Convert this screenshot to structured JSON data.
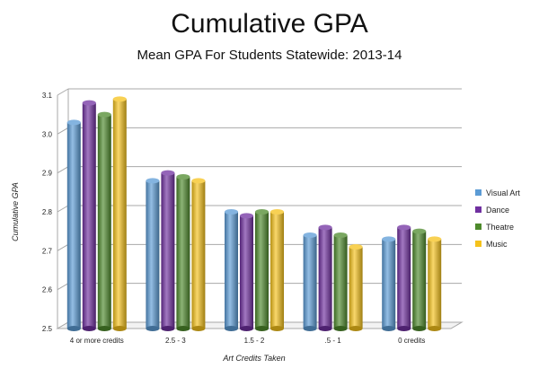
{
  "chart_data": {
    "type": "bar",
    "title": "Cumulative GPA",
    "subtitle": "Mean GPA For Students Statewide: 2013-14",
    "xlabel": "Art Credits Taken",
    "ylabel": "Cumulative GPA",
    "ylim": [
      2.5,
      3.1
    ],
    "yticks": [
      "2.5",
      "2.6",
      "2.7",
      "2.8",
      "2.9",
      "3.0",
      "3.1"
    ],
    "grid": true,
    "legend_position": "right",
    "categories": [
      "4 or more credits",
      "2.5 - 3",
      "1.5 - 2",
      ".5 - 1",
      "0 credits"
    ],
    "series": [
      {
        "name": "Visual Art",
        "color": "#5b9bd5",
        "values": [
          3.03,
          2.88,
          2.8,
          2.74,
          2.73
        ]
      },
      {
        "name": "Dance",
        "color": "#7030a0",
        "values": [
          3.08,
          2.9,
          2.79,
          2.76,
          2.76
        ]
      },
      {
        "name": "Theatre",
        "color": "#4e8a2c",
        "values": [
          3.05,
          2.89,
          2.8,
          2.74,
          2.75
        ]
      },
      {
        "name": "Music",
        "color": "#f5c21b",
        "values": [
          3.09,
          2.88,
          2.8,
          2.71,
          2.73
        ]
      }
    ]
  }
}
